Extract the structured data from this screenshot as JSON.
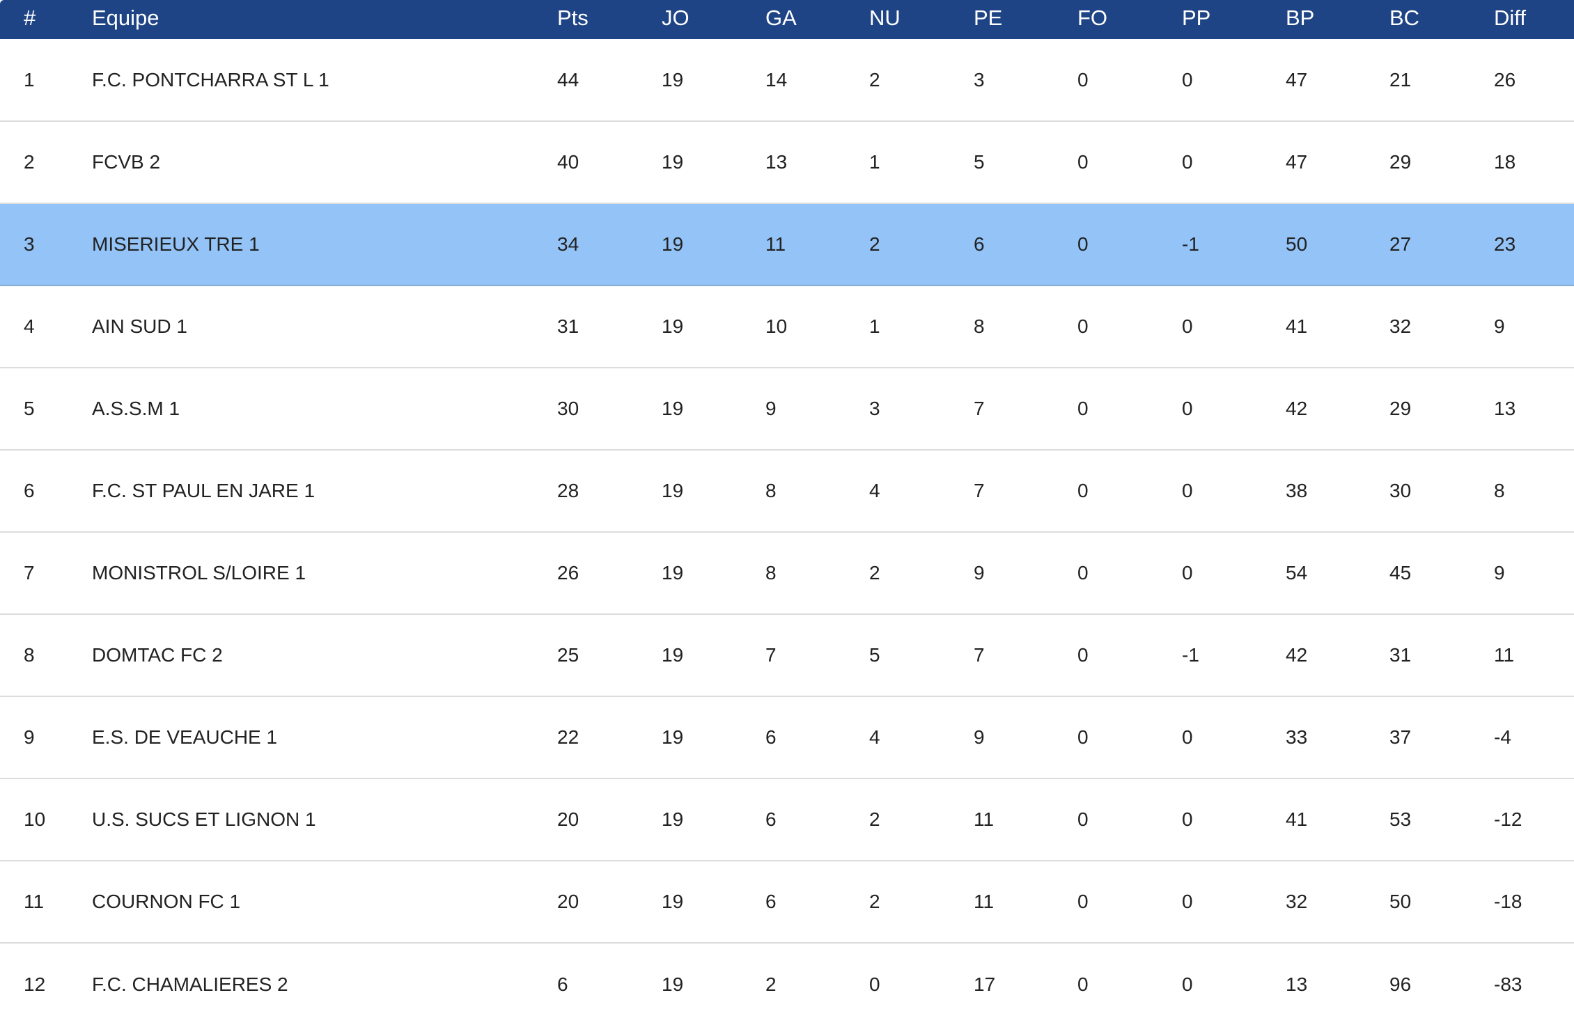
{
  "table": {
    "headers": [
      "#",
      "Equipe",
      "Pts",
      "JO",
      "GA",
      "NU",
      "PE",
      "FO",
      "PP",
      "BP",
      "BC",
      "Diff"
    ],
    "highlight_color": "#94c3f7",
    "header_color": "#1f4485",
    "rows": [
      [
        "1",
        "F.C. PONTCHARRA ST L 1",
        "44",
        "19",
        "14",
        "2",
        "3",
        "0",
        "0",
        "47",
        "21",
        "26"
      ],
      [
        "2",
        "FCVB 2",
        "40",
        "19",
        "13",
        "1",
        "5",
        "0",
        "0",
        "47",
        "29",
        "18"
      ],
      [
        "3",
        "MISERIEUX TRE 1",
        "34",
        "19",
        "11",
        "2",
        "6",
        "0",
        "-1",
        "50",
        "27",
        "23"
      ],
      [
        "4",
        "AIN SUD 1",
        "31",
        "19",
        "10",
        "1",
        "8",
        "0",
        "0",
        "41",
        "32",
        "9"
      ],
      [
        "5",
        "A.S.S.M 1",
        "30",
        "19",
        "9",
        "3",
        "7",
        "0",
        "0",
        "42",
        "29",
        "13"
      ],
      [
        "6",
        "F.C. ST PAUL EN JARE 1",
        "28",
        "19",
        "8",
        "4",
        "7",
        "0",
        "0",
        "38",
        "30",
        "8"
      ],
      [
        "7",
        "MONISTROL S/LOIRE 1",
        "26",
        "19",
        "8",
        "2",
        "9",
        "0",
        "0",
        "54",
        "45",
        "9"
      ],
      [
        "8",
        "DOMTAC FC 2",
        "25",
        "19",
        "7",
        "5",
        "7",
        "0",
        "-1",
        "42",
        "31",
        "11"
      ],
      [
        "9",
        "E.S. DE VEAUCHE 1",
        "22",
        "19",
        "6",
        "4",
        "9",
        "0",
        "0",
        "33",
        "37",
        "-4"
      ],
      [
        "10",
        "U.S. SUCS ET LIGNON 1",
        "20",
        "19",
        "6",
        "2",
        "11",
        "0",
        "0",
        "41",
        "53",
        "-12"
      ],
      [
        "11",
        "COURNON FC 1",
        "20",
        "19",
        "6",
        "2",
        "11",
        "0",
        "0",
        "32",
        "50",
        "-18"
      ],
      [
        "12",
        "F.C. CHAMALIERES 2",
        "6",
        "19",
        "2",
        "0",
        "17",
        "0",
        "0",
        "13",
        "96",
        "-83"
      ]
    ],
    "highlighted_row": 2
  }
}
